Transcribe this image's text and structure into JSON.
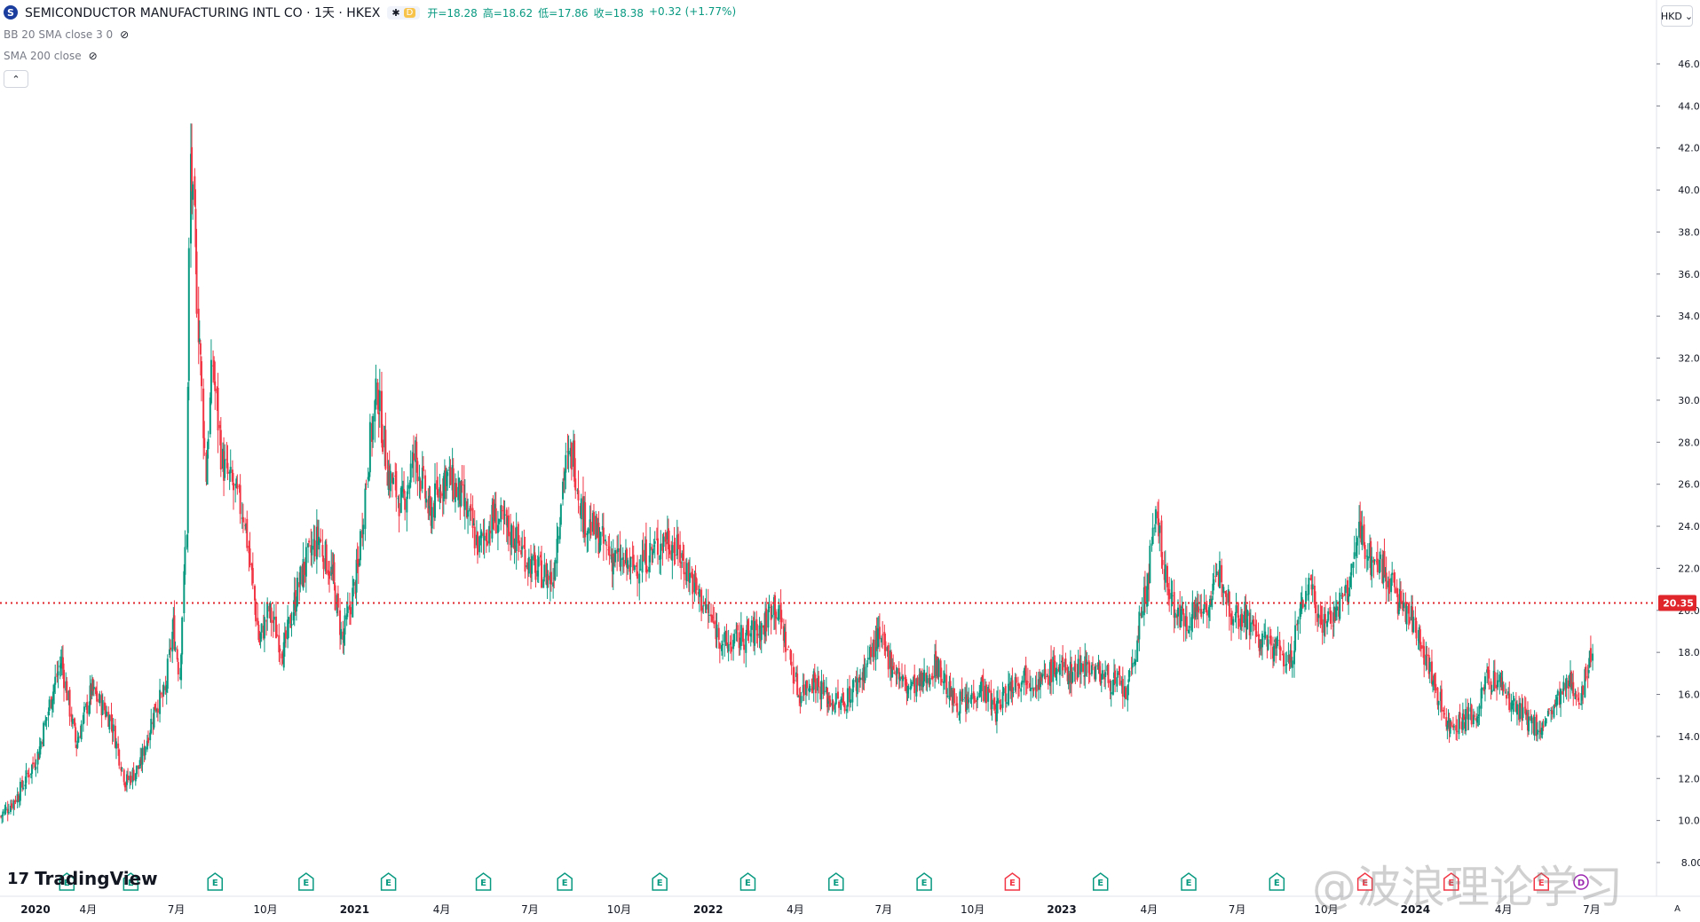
{
  "header": {
    "symbol_logo": "S",
    "symbol_title": "SEMICONDUCTOR MANUFACTURING INTL CO · 1天 · HKEX",
    "pill_icon": "asterisk-icon",
    "pill_badge": "D",
    "ohlc": [
      "开=18.28",
      "高=18.62",
      "低=17.86",
      "收=18.38",
      "+0.32 (+1.77%)"
    ]
  },
  "indicators": [
    {
      "label": "BB 20 SMA close 3 0",
      "icon": "eye-off-icon"
    },
    {
      "label": "SMA 200 close",
      "icon": "eye-off-icon"
    }
  ],
  "collapse_icon": "chevron-up-icon",
  "currency_button": "HKD",
  "branding": {
    "logo": "TradingView",
    "mark": "17"
  },
  "watermark": "@波浪理论学习",
  "auto_label": "A",
  "colors": {
    "up": "#089981",
    "down": "#f23645",
    "level": "#e0262b",
    "earnings": "#089981",
    "earnings_alt": "#f23645",
    "dividend": "#9c27b0"
  },
  "chart_data": {
    "type": "candlestick",
    "y_axis": {
      "min": 8,
      "max": 46,
      "ticks": [
        "46.00",
        "44.00",
        "42.00",
        "40.00",
        "38.00",
        "36.00",
        "34.00",
        "32.00",
        "30.00",
        "28.00",
        "26.00",
        "24.00",
        "22.00",
        "20.00",
        "18.00",
        "16.00",
        "14.00",
        "12.00",
        "10.00",
        "8.00"
      ]
    },
    "x_axis_labels": [
      "2020",
      "4月",
      "7月",
      "10月",
      "2021",
      "4月",
      "7月",
      "10月",
      "2022",
      "4月",
      "7月",
      "10月",
      "2023",
      "4月",
      "7月",
      "10月",
      "2024",
      "4月",
      "7月"
    ],
    "price_line": {
      "value": 20.35,
      "label": "20.35"
    },
    "close_path": [
      [
        "2020-01-02",
        10.2
      ],
      [
        "2020-01-20",
        11.2
      ],
      [
        "2020-02-10",
        13.2
      ],
      [
        "2020-02-25",
        16.2
      ],
      [
        "2020-03-05",
        17.6
      ],
      [
        "2020-03-20",
        13.6
      ],
      [
        "2020-04-05",
        16.2
      ],
      [
        "2020-04-25",
        14.8
      ],
      [
        "2020-05-10",
        11.8
      ],
      [
        "2020-05-25",
        12.6
      ],
      [
        "2020-06-10",
        15.5
      ],
      [
        "2020-06-20",
        16.0
      ],
      [
        "2020-06-28",
        19.2
      ],
      [
        "2020-07-05",
        17.0
      ],
      [
        "2020-07-12",
        24.0
      ],
      [
        "2020-07-16",
        41.5
      ],
      [
        "2020-07-20",
        38.0
      ],
      [
        "2020-07-25",
        33.0
      ],
      [
        "2020-08-01",
        26.5
      ],
      [
        "2020-08-08",
        31.8
      ],
      [
        "2020-08-18",
        27.0
      ],
      [
        "2020-09-10",
        24.5
      ],
      [
        "2020-09-25",
        18.5
      ],
      [
        "2020-10-05",
        20.0
      ],
      [
        "2020-10-20",
        18.0
      ],
      [
        "2020-11-01",
        20.5
      ],
      [
        "2020-11-10",
        22.0
      ],
      [
        "2020-11-25",
        23.5
      ],
      [
        "2020-12-10",
        21.5
      ],
      [
        "2020-12-20",
        18.5
      ],
      [
        "2021-01-05",
        22.0
      ],
      [
        "2021-01-15",
        27.0
      ],
      [
        "2021-01-25",
        30.5
      ],
      [
        "2021-02-05",
        26.5
      ],
      [
        "2021-02-20",
        25.0
      ],
      [
        "2021-03-05",
        27.5
      ],
      [
        "2021-03-20",
        24.5
      ],
      [
        "2021-04-05",
        26.5
      ],
      [
        "2021-04-20",
        25.5
      ],
      [
        "2021-05-10",
        23.0
      ],
      [
        "2021-05-25",
        24.5
      ],
      [
        "2021-06-15",
        23.5
      ],
      [
        "2021-07-05",
        22.0
      ],
      [
        "2021-07-25",
        21.5
      ],
      [
        "2021-08-05",
        26.5
      ],
      [
        "2021-08-15",
        27.5
      ],
      [
        "2021-08-25",
        24.5
      ],
      [
        "2021-09-10",
        23.5
      ],
      [
        "2021-09-25",
        22.5
      ],
      [
        "2021-10-15",
        22.0
      ],
      [
        "2021-11-05",
        22.8
      ],
      [
        "2021-11-20",
        23.5
      ],
      [
        "2021-12-05",
        22.5
      ],
      [
        "2021-12-25",
        20.5
      ],
      [
        "2022-01-05",
        19.5
      ],
      [
        "2022-01-20",
        18.3
      ],
      [
        "2022-02-10",
        18.8
      ],
      [
        "2022-02-28",
        19.2
      ],
      [
        "2022-03-10",
        20.5
      ],
      [
        "2022-03-20",
        19.0
      ],
      [
        "2022-04-05",
        16.0
      ],
      [
        "2022-04-20",
        16.8
      ],
      [
        "2022-05-05",
        15.8
      ],
      [
        "2022-05-20",
        15.5
      ],
      [
        "2022-06-10",
        17.0
      ],
      [
        "2022-06-25",
        18.7
      ],
      [
        "2022-07-10",
        17.5
      ],
      [
        "2022-07-25",
        16.3
      ],
      [
        "2022-08-10",
        16.5
      ],
      [
        "2022-08-25",
        17.5
      ],
      [
        "2022-09-10",
        15.8
      ],
      [
        "2022-09-25",
        15.5
      ],
      [
        "2022-10-10",
        16.5
      ],
      [
        "2022-10-25",
        15.2
      ],
      [
        "2022-11-10",
        16.5
      ],
      [
        "2022-11-25",
        17.0
      ],
      [
        "2022-12-10",
        16.5
      ],
      [
        "2022-12-25",
        17.3
      ],
      [
        "2023-01-10",
        17.0
      ],
      [
        "2023-01-25",
        17.5
      ],
      [
        "2023-02-10",
        17.0
      ],
      [
        "2023-02-28",
        16.5
      ],
      [
        "2023-03-10",
        16.0
      ],
      [
        "2023-03-20",
        18.5
      ],
      [
        "2023-03-31",
        21.5
      ],
      [
        "2023-04-10",
        24.5
      ],
      [
        "2023-04-20",
        21.0
      ],
      [
        "2023-05-05",
        19.5
      ],
      [
        "2023-05-20",
        20.0
      ],
      [
        "2023-06-05",
        20.5
      ],
      [
        "2023-06-15",
        22.0
      ],
      [
        "2023-06-25",
        20.0
      ],
      [
        "2023-07-10",
        19.8
      ],
      [
        "2023-07-25",
        18.5
      ],
      [
        "2023-08-10",
        18.3
      ],
      [
        "2023-08-25",
        17.5
      ],
      [
        "2023-09-05",
        20.0
      ],
      [
        "2023-09-15",
        21.5
      ],
      [
        "2023-09-25",
        19.5
      ],
      [
        "2023-10-10",
        19.8
      ],
      [
        "2023-10-25",
        21.0
      ],
      [
        "2023-11-05",
        24.0
      ],
      [
        "2023-11-15",
        22.5
      ],
      [
        "2023-11-30",
        22.0
      ],
      [
        "2023-12-15",
        20.5
      ],
      [
        "2024-01-05",
        19.0
      ],
      [
        "2024-01-20",
        16.5
      ],
      [
        "2024-02-05",
        14.5
      ],
      [
        "2024-02-20",
        14.8
      ],
      [
        "2024-03-05",
        15.0
      ],
      [
        "2024-03-15",
        16.8
      ],
      [
        "2024-03-30",
        16.5
      ],
      [
        "2024-04-10",
        15.5
      ],
      [
        "2024-04-25",
        14.8
      ],
      [
        "2024-05-10",
        14.3
      ],
      [
        "2024-05-25",
        15.5
      ],
      [
        "2024-06-10",
        16.5
      ],
      [
        "2024-06-20",
        16.0
      ],
      [
        "2024-06-28",
        17.2
      ],
      [
        "2024-07-03",
        18.4
      ]
    ],
    "event_markers": [
      {
        "date": "2020-03-10",
        "type": "earnings",
        "label": "E"
      },
      {
        "date": "2020-05-15",
        "type": "earnings",
        "label": "E"
      },
      {
        "date": "2020-08-10",
        "type": "earnings",
        "label": "E"
      },
      {
        "date": "2020-11-12",
        "type": "earnings",
        "label": "E"
      },
      {
        "date": "2021-02-05",
        "type": "earnings",
        "label": "E"
      },
      {
        "date": "2021-05-14",
        "type": "earnings",
        "label": "E"
      },
      {
        "date": "2021-08-06",
        "type": "earnings",
        "label": "E"
      },
      {
        "date": "2021-11-12",
        "type": "earnings",
        "label": "E"
      },
      {
        "date": "2022-02-11",
        "type": "earnings",
        "label": "E"
      },
      {
        "date": "2022-05-13",
        "type": "earnings",
        "label": "E"
      },
      {
        "date": "2022-08-12",
        "type": "earnings",
        "label": "E"
      },
      {
        "date": "2022-11-11",
        "type": "earnings_alt",
        "label": "E"
      },
      {
        "date": "2023-02-10",
        "type": "earnings",
        "label": "E"
      },
      {
        "date": "2023-05-12",
        "type": "earnings",
        "label": "E"
      },
      {
        "date": "2023-08-11",
        "type": "earnings",
        "label": "E"
      },
      {
        "date": "2023-11-10",
        "type": "earnings_alt",
        "label": "E"
      },
      {
        "date": "2024-02-07",
        "type": "earnings_alt",
        "label": "E"
      },
      {
        "date": "2024-05-10",
        "type": "earnings_alt",
        "label": "E"
      },
      {
        "date": "2024-06-20",
        "type": "dividend",
        "label": "D"
      }
    ]
  }
}
